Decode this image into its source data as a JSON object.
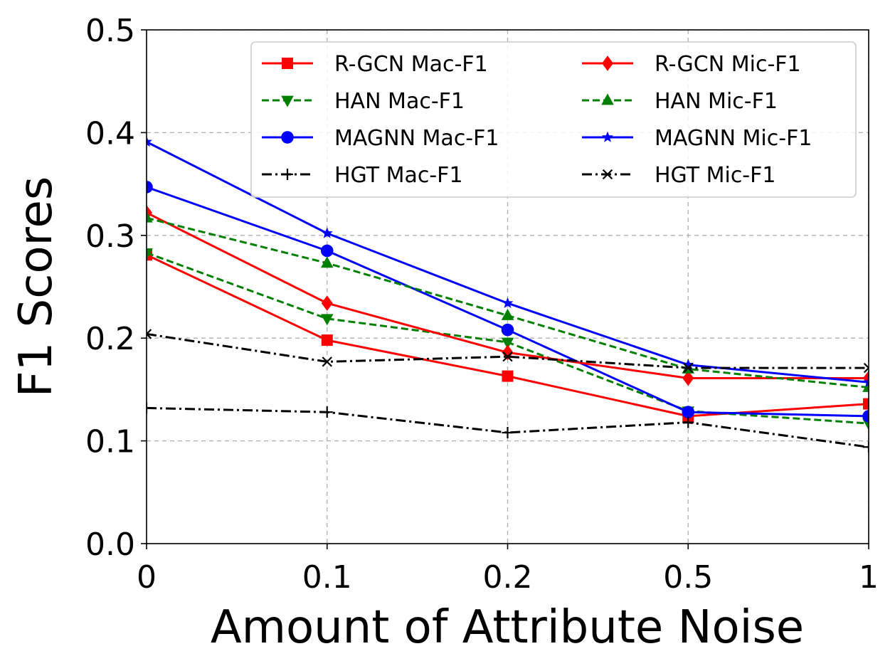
{
  "chart_data": {
    "type": "line",
    "title": "",
    "xlabel": "Amount of Attribute Noise",
    "ylabel": "F1 Scores",
    "categories": [
      "0",
      "0.1",
      "0.2",
      "0.5",
      "1"
    ],
    "ylim": [
      0.0,
      0.5
    ],
    "yticks": [
      "0.0",
      "0.1",
      "0.2",
      "0.3",
      "0.4",
      "0.5"
    ],
    "grid": true,
    "legend_position": "top-right",
    "legend_columns": 2,
    "series": [
      {
        "name": "R-GCN Mac-F1",
        "color": "#ff0000",
        "dash": "solid",
        "marker": "square",
        "values": [
          0.281,
          0.198,
          0.163,
          0.124,
          0.136
        ]
      },
      {
        "name": "HAN Mac-F1",
        "color": "#008000",
        "dash": "dashed",
        "marker": "triangle-down",
        "values": [
          0.283,
          0.219,
          0.196,
          0.129,
          0.117
        ]
      },
      {
        "name": "MAGNN Mac-F1",
        "color": "#0000ff",
        "dash": "solid",
        "marker": "circle",
        "values": [
          0.347,
          0.285,
          0.208,
          0.128,
          0.124
        ]
      },
      {
        "name": "HGT Mac-F1",
        "color": "#000000",
        "dash": "dashdot",
        "marker": "plus",
        "values": [
          0.132,
          0.128,
          0.108,
          0.118,
          0.094
        ]
      },
      {
        "name": "R-GCN Mic-F1",
        "color": "#ff0000",
        "dash": "solid",
        "marker": "diamond",
        "values": [
          0.322,
          0.234,
          0.186,
          0.161,
          0.161
        ]
      },
      {
        "name": "HAN Mic-F1",
        "color": "#008000",
        "dash": "dashed",
        "marker": "triangle-up",
        "values": [
          0.317,
          0.273,
          0.222,
          0.17,
          0.152
        ]
      },
      {
        "name": "MAGNN Mic-F1",
        "color": "#0000ff",
        "dash": "solid",
        "marker": "star",
        "values": [
          0.391,
          0.302,
          0.234,
          0.174,
          0.157
        ]
      },
      {
        "name": "HGT Mic-F1",
        "color": "#000000",
        "dash": "dashdot",
        "marker": "x",
        "values": [
          0.204,
          0.177,
          0.182,
          0.171,
          0.171
        ]
      }
    ]
  }
}
